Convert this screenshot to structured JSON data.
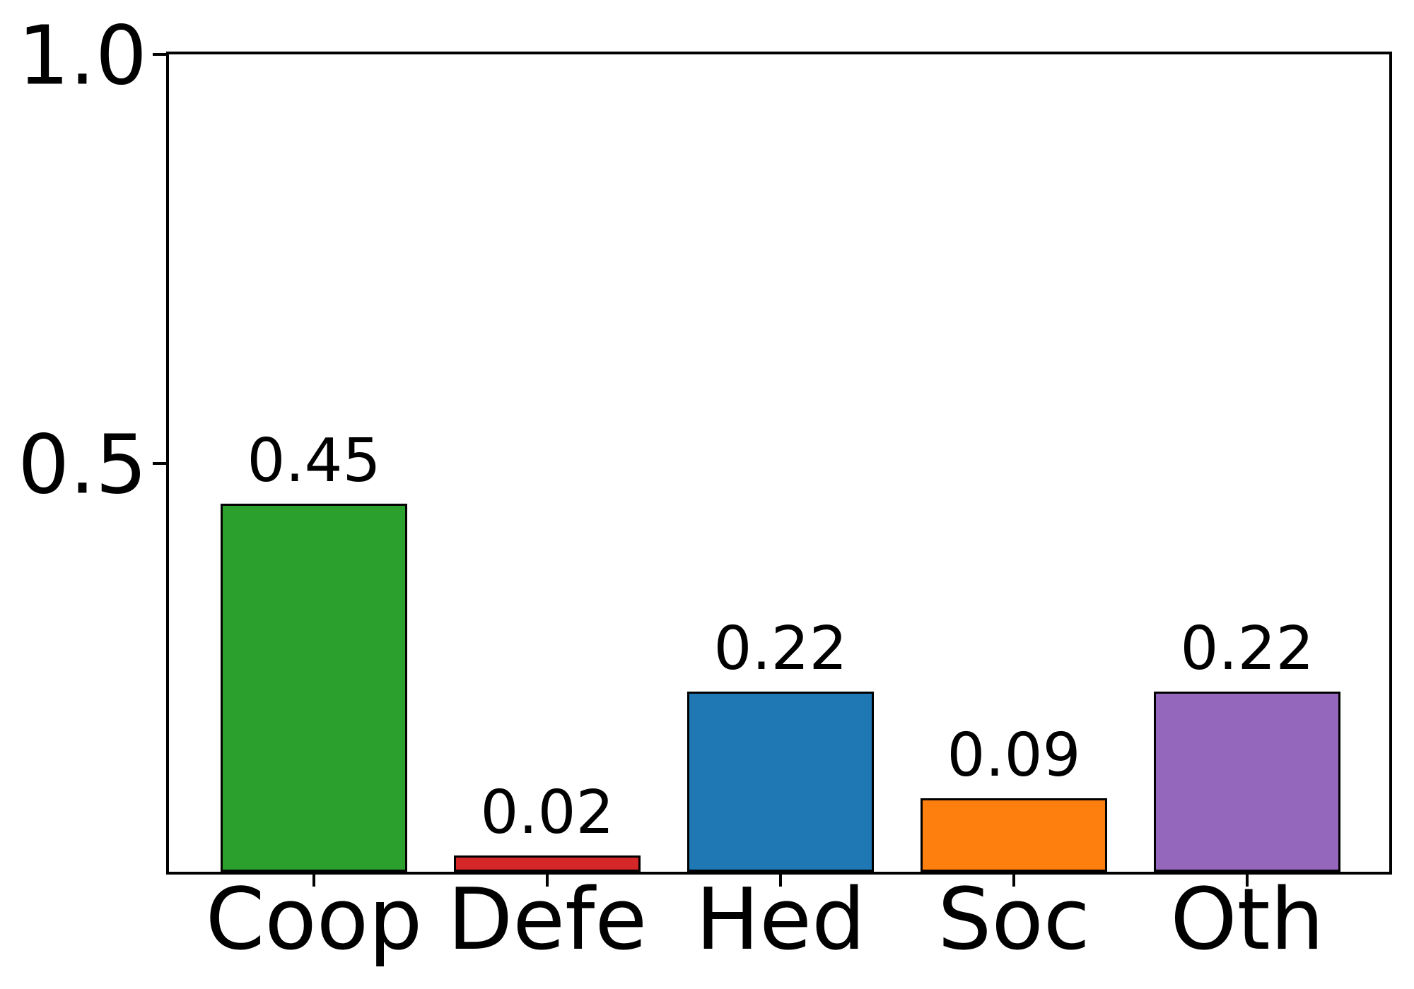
{
  "chart_data": {
    "type": "bar",
    "categories": [
      "Coop",
      "Defe",
      "Hed",
      "Soc",
      "Oth"
    ],
    "values": [
      0.45,
      0.02,
      0.22,
      0.09,
      0.22
    ],
    "value_labels": [
      "0.45",
      "0.02",
      "0.22",
      "0.09",
      "0.22"
    ],
    "bar_colors": [
      "#2ca02c",
      "#d62728",
      "#1f77b4",
      "#ff7f0e",
      "#9467bd"
    ],
    "bar_edge_color": "#000000",
    "title": "",
    "xlabel": "",
    "ylabel": "",
    "ylim": [
      0,
      1.0
    ],
    "yticks": [
      {
        "value": 0.5,
        "label": "0.5"
      },
      {
        "value": 1.0,
        "label": "1.0"
      }
    ],
    "grid": false,
    "legend_position": "none",
    "background_color": "#ffffff",
    "text_color": "#000000"
  }
}
